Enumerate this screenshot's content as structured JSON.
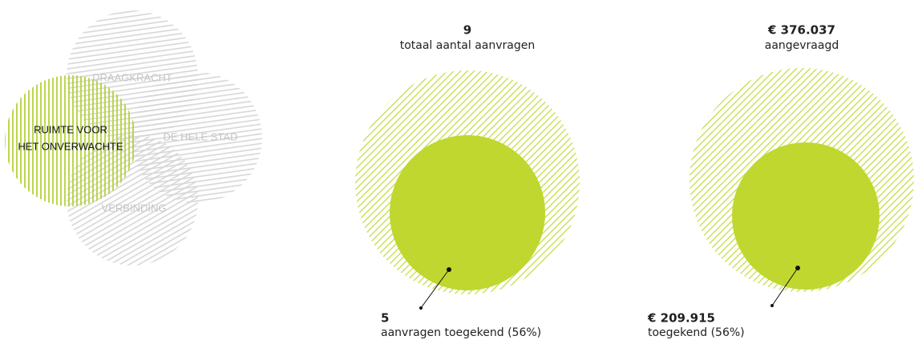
{
  "venn": {
    "labels": {
      "top": "DRAAGKRACHT",
      "right": "DE HELE STAD",
      "bottom": "VERBINDING",
      "left": [
        "RUIMTE VOOR",
        "HET ONVERWACHTE"
      ]
    }
  },
  "stats": [
    {
      "total": "9",
      "total_label": "totaal aantal aanvragen",
      "granted": "5",
      "granted_label": "aanvragen toegekend (56%)"
    },
    {
      "total": "€ 376.037",
      "total_label": "aangevraagd",
      "granted": "€ 209.915",
      "granted_label": "toegekend (56%)"
    }
  ]
}
